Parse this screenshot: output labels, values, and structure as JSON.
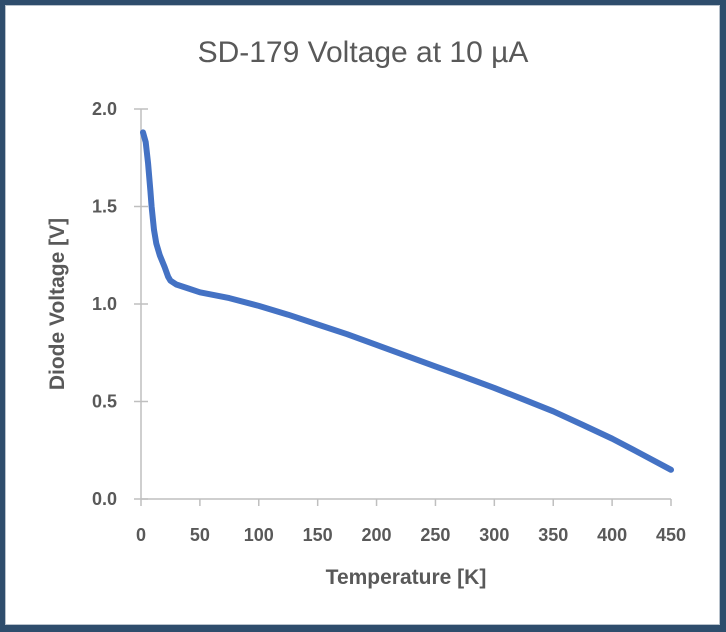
{
  "chart_data": {
    "type": "line",
    "title": "SD-179 Voltage at 10 µA",
    "xlabel": "Temperature [K]",
    "ylabel": "Diode Voltage [V]",
    "xlim": [
      0,
      450
    ],
    "ylim": [
      0,
      2.0
    ],
    "xticks": [
      "0",
      "50",
      "100",
      "150",
      "200",
      "250",
      "300",
      "350",
      "400",
      "450"
    ],
    "yticks": [
      "0.0",
      "0.5",
      "1.0",
      "1.5",
      "2.0"
    ],
    "grid": false,
    "series_color": "#4472c4",
    "series": [
      {
        "x": [
          1.7,
          4,
          6,
          8,
          9,
          11,
          13,
          16,
          20,
          23,
          25,
          30,
          40,
          50,
          75,
          100,
          125,
          150,
          175,
          200,
          225,
          250,
          275,
          300,
          325,
          350,
          375,
          400,
          425,
          450
        ],
        "y": [
          1.88,
          1.83,
          1.72,
          1.58,
          1.5,
          1.38,
          1.31,
          1.25,
          1.19,
          1.14,
          1.12,
          1.1,
          1.08,
          1.06,
          1.03,
          0.99,
          0.945,
          0.895,
          0.845,
          0.79,
          0.735,
          0.68,
          0.625,
          0.57,
          0.51,
          0.45,
          0.38,
          0.31,
          0.23,
          0.15
        ]
      }
    ]
  }
}
